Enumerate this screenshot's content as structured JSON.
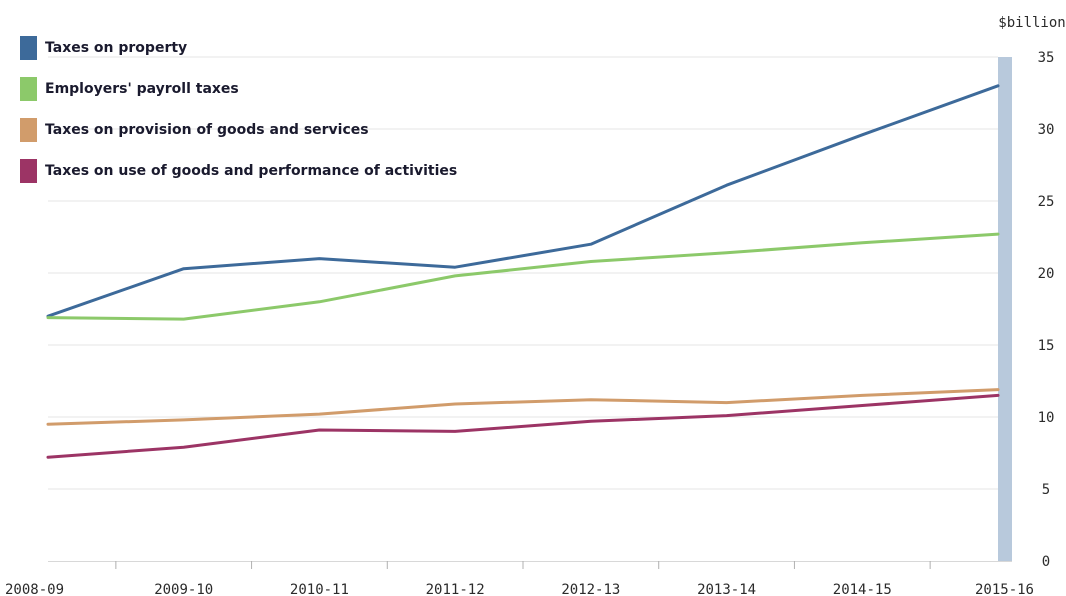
{
  "chart_data": {
    "type": "line",
    "title": "",
    "xlabel": "",
    "ylabel": "$billion",
    "ylim": [
      0,
      35
    ],
    "yticks": [
      0,
      5,
      10,
      15,
      20,
      25,
      30,
      35
    ],
    "categories": [
      "2008-09",
      "2009-10",
      "2010-11",
      "2011-12",
      "2012-13",
      "2013-14",
      "2014-15",
      "2015-16"
    ],
    "grid": true,
    "legend_position": "top-left",
    "series": [
      {
        "name": "Taxes on property",
        "color": "#3d6a9a",
        "values": [
          17.0,
          20.3,
          21.0,
          20.4,
          22.0,
          26.1,
          29.6,
          33.0
        ]
      },
      {
        "name": "Employers' payroll taxes",
        "color": "#8cc96a",
        "values": [
          16.9,
          16.8,
          18.0,
          19.8,
          20.8,
          21.4,
          22.1,
          22.7
        ]
      },
      {
        "name": "Taxes on provision of goods and services",
        "color": "#d19c6b",
        "values": [
          9.5,
          9.8,
          10.2,
          10.9,
          11.2,
          11.0,
          11.5,
          11.9
        ]
      },
      {
        "name": "Taxes on use of goods and performance of activities",
        "color": "#9c3465",
        "values": [
          7.2,
          7.9,
          9.1,
          9.0,
          9.7,
          10.1,
          10.8,
          11.5
        ]
      }
    ]
  }
}
